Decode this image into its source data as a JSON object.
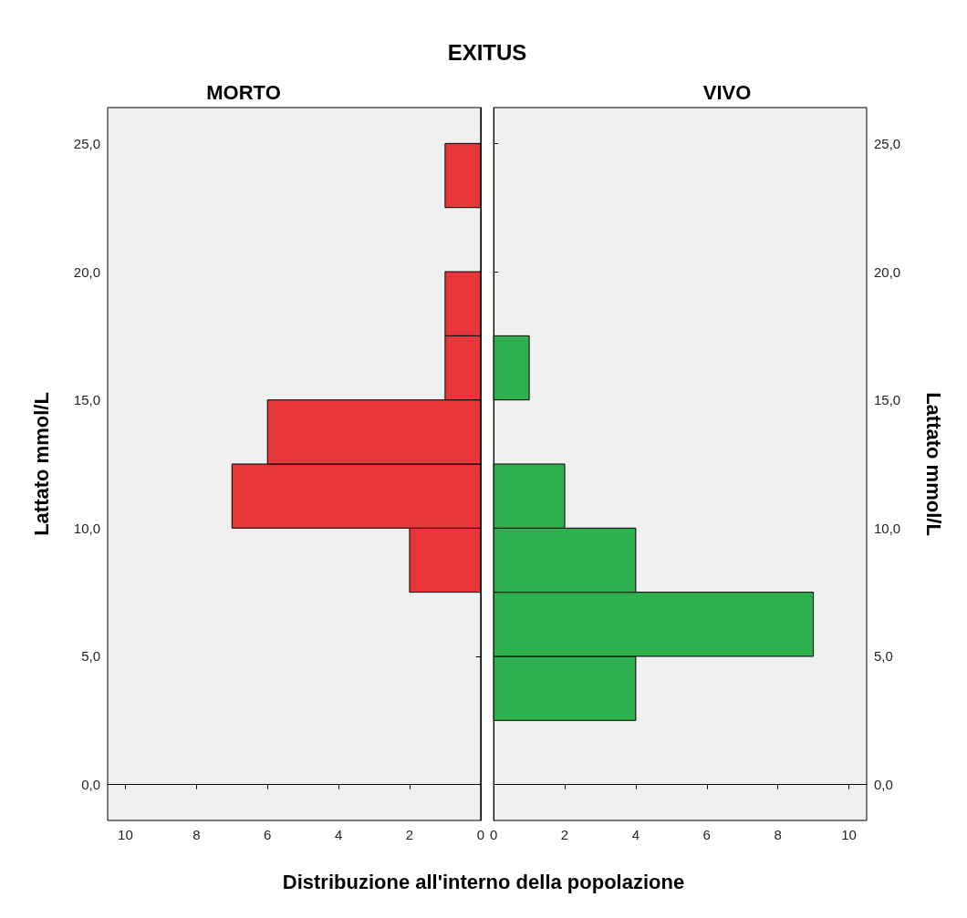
{
  "chart_data": [
    {
      "type": "histogram",
      "orientation": "horizontal",
      "title": "EXITUS",
      "subtitle": "MORTO",
      "xlabel": "Distribuzione all'interno della popolazione",
      "ylabel": "Lattato mmol/L",
      "bins": [
        2.5,
        5,
        7.5,
        10,
        12.5,
        15,
        17.5,
        20,
        22.5,
        25
      ],
      "values": [
        0,
        0,
        2,
        7,
        6,
        1,
        1,
        0,
        1
      ],
      "color": "#e8373a",
      "xlim": [
        10.5,
        0
      ],
      "xticks": [
        0,
        2,
        4,
        6,
        8,
        10
      ],
      "ylim": [
        -1.4,
        26.4
      ],
      "yticks": [
        {
          "value": 0,
          "label": "0,0"
        },
        {
          "value": 5,
          "label": "5,0"
        },
        {
          "value": 10,
          "label": "10,0"
        },
        {
          "value": 15,
          "label": "15,0"
        },
        {
          "value": 20,
          "label": "20,0"
        },
        {
          "value": 25,
          "label": "25,0"
        }
      ]
    },
    {
      "type": "histogram",
      "orientation": "horizontal",
      "subtitle": "VIVO",
      "ylabel": "Lattato mmol/L",
      "bins": [
        2.5,
        5,
        7.5,
        10,
        12.5,
        15,
        17.5,
        20,
        22.5,
        25
      ],
      "values": [
        4,
        9,
        4,
        2,
        0,
        1,
        0,
        0,
        0
      ],
      "color": "#2eb04f",
      "xlim": [
        0,
        10.5
      ],
      "xticks": [
        0,
        2,
        4,
        6,
        8,
        10
      ],
      "ylim": [
        -1.4,
        26.4
      ],
      "yticks": [
        {
          "value": 0,
          "label": "0,0"
        },
        {
          "value": 5,
          "label": "5,0"
        },
        {
          "value": 10,
          "label": "10,0"
        },
        {
          "value": 15,
          "label": "15,0"
        },
        {
          "value": 20,
          "label": "20,0"
        },
        {
          "value": 25,
          "label": "25,0"
        }
      ]
    }
  ]
}
